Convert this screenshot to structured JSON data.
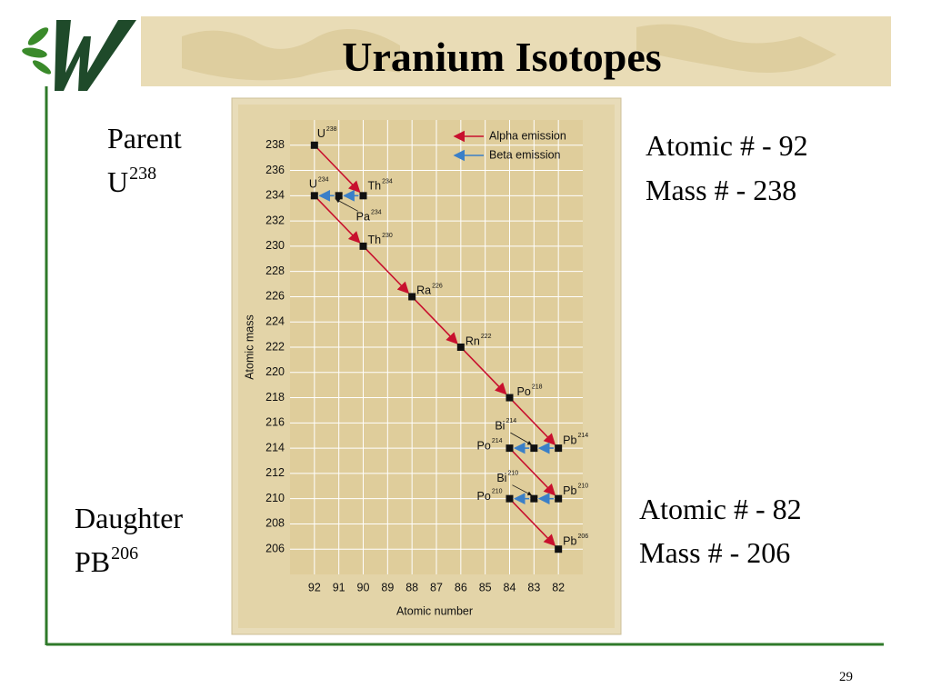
{
  "slide": {
    "title": "Uranium Isotopes",
    "parent": {
      "label": "Parent",
      "symbol": "U",
      "mass": "238"
    },
    "parent_info": [
      "Atomic # - 92",
      "Mass # - 238"
    ],
    "daughter": {
      "label": "Daughter",
      "symbol": "PB",
      "mass": "206"
    },
    "daughter_info": [
      "Atomic # - 82",
      "Mass # - 206"
    ],
    "page_number": "29"
  },
  "chart_data": {
    "type": "decay-chain",
    "x_label": "Atomic number",
    "y_label": "Atomic mass",
    "xlim": [
      93,
      81
    ],
    "ylim": [
      204,
      240
    ],
    "xticks": [
      92,
      91,
      90,
      89,
      88,
      87,
      86,
      85,
      84,
      83,
      82
    ],
    "yticks": [
      206,
      208,
      210,
      212,
      214,
      216,
      218,
      220,
      222,
      224,
      226,
      228,
      230,
      232,
      234,
      236,
      238
    ],
    "grid": true,
    "legend": [
      {
        "name": "Alpha emission",
        "color": "#c8102e"
      },
      {
        "name": "Beta emission",
        "color": "#3a7fc8"
      }
    ],
    "points": [
      {
        "symbol": "U",
        "x": 92,
        "y": 238
      },
      {
        "symbol": "Th",
        "x": 90,
        "y": 234
      },
      {
        "symbol": "Pa",
        "x": 91,
        "y": 234
      },
      {
        "symbol": "U",
        "x": 92,
        "y": 234
      },
      {
        "symbol": "Th",
        "x": 90,
        "y": 230
      },
      {
        "symbol": "Ra",
        "x": 88,
        "y": 226
      },
      {
        "symbol": "Rn",
        "x": 86,
        "y": 222
      },
      {
        "symbol": "Po",
        "x": 84,
        "y": 218
      },
      {
        "symbol": "Pb",
        "x": 82,
        "y": 214
      },
      {
        "symbol": "Bi",
        "x": 83,
        "y": 214
      },
      {
        "symbol": "Po",
        "x": 84,
        "y": 214
      },
      {
        "symbol": "Pb",
        "x": 82,
        "y": 210
      },
      {
        "symbol": "Bi",
        "x": 83,
        "y": 210
      },
      {
        "symbol": "Po",
        "x": 84,
        "y": 210
      },
      {
        "symbol": "Pb",
        "x": 82,
        "y": 206
      }
    ]
  }
}
